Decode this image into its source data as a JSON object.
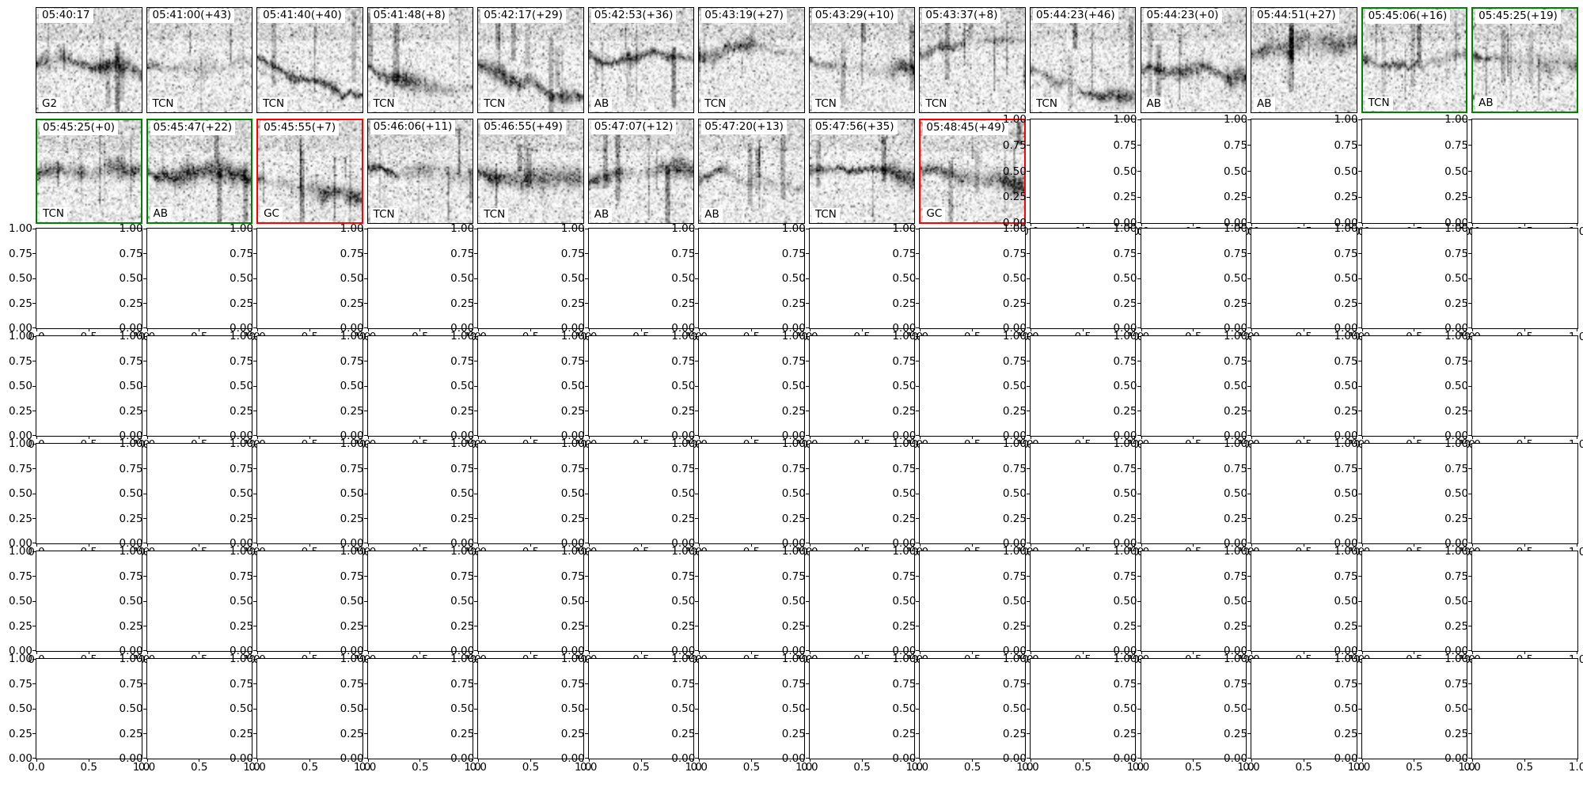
{
  "chart_data": {
    "type": "heatmap",
    "subtype": "spectrogram-detection-thumbnail-grid",
    "grid": {
      "rows": 7,
      "cols": 14
    },
    "colors": {
      "background": "#ffffff",
      "spine": "#000000",
      "text": "#000000",
      "highlight_green": "#008000",
      "highlight_red": "#ff0000"
    },
    "empty_axes": {
      "xlim": [
        0,
        1
      ],
      "ylim": [
        0,
        1
      ],
      "yticks": [
        "1.00",
        "0.75",
        "0.50",
        "0.25",
        "0.00"
      ],
      "xticks": [
        "0.0",
        "0.5",
        "1.0"
      ],
      "grid_lines": "off",
      "legend": "none"
    },
    "panels": [
      {
        "row": 0,
        "col": 0,
        "timestamp": "05:40:17",
        "label": "G2",
        "highlight": "none"
      },
      {
        "row": 0,
        "col": 1,
        "timestamp": "05:41:00(+43)",
        "label": "TCN",
        "highlight": "none"
      },
      {
        "row": 0,
        "col": 2,
        "timestamp": "05:41:40(+40)",
        "label": "TCN",
        "highlight": "none"
      },
      {
        "row": 0,
        "col": 3,
        "timestamp": "05:41:48(+8)",
        "label": "TCN",
        "highlight": "none"
      },
      {
        "row": 0,
        "col": 4,
        "timestamp": "05:42:17(+29)",
        "label": "TCN",
        "highlight": "none"
      },
      {
        "row": 0,
        "col": 5,
        "timestamp": "05:42:53(+36)",
        "label": "AB",
        "highlight": "none"
      },
      {
        "row": 0,
        "col": 6,
        "timestamp": "05:43:19(+27)",
        "label": "TCN",
        "highlight": "none"
      },
      {
        "row": 0,
        "col": 7,
        "timestamp": "05:43:29(+10)",
        "label": "TCN",
        "highlight": "none"
      },
      {
        "row": 0,
        "col": 8,
        "timestamp": "05:43:37(+8)",
        "label": "TCN",
        "highlight": "none"
      },
      {
        "row": 0,
        "col": 9,
        "timestamp": "05:44:23(+46)",
        "label": "TCN",
        "highlight": "none"
      },
      {
        "row": 0,
        "col": 10,
        "timestamp": "05:44:23(+0)",
        "label": "AB",
        "highlight": "none"
      },
      {
        "row": 0,
        "col": 11,
        "timestamp": "05:44:51(+27)",
        "label": "AB",
        "highlight": "none"
      },
      {
        "row": 0,
        "col": 12,
        "timestamp": "05:45:06(+16)",
        "label": "TCN",
        "highlight": "green"
      },
      {
        "row": 0,
        "col": 13,
        "timestamp": "05:45:25(+19)",
        "label": "AB",
        "highlight": "green"
      },
      {
        "row": 1,
        "col": 0,
        "timestamp": "05:45:25(+0)",
        "label": "TCN",
        "highlight": "green"
      },
      {
        "row": 1,
        "col": 1,
        "timestamp": "05:45:47(+22)",
        "label": "AB",
        "highlight": "green"
      },
      {
        "row": 1,
        "col": 2,
        "timestamp": "05:45:55(+7)",
        "label": "GC",
        "highlight": "red"
      },
      {
        "row": 1,
        "col": 3,
        "timestamp": "05:46:06(+11)",
        "label": "TCN",
        "highlight": "none"
      },
      {
        "row": 1,
        "col": 4,
        "timestamp": "05:46:55(+49)",
        "label": "TCN",
        "highlight": "none"
      },
      {
        "row": 1,
        "col": 5,
        "timestamp": "05:47:07(+12)",
        "label": "AB",
        "highlight": "none"
      },
      {
        "row": 1,
        "col": 6,
        "timestamp": "05:47:20(+13)",
        "label": "AB",
        "highlight": "none"
      },
      {
        "row": 1,
        "col": 7,
        "timestamp": "05:47:56(+35)",
        "label": "TCN",
        "highlight": "none"
      },
      {
        "row": 1,
        "col": 8,
        "timestamp": "05:48:45(+49)",
        "label": "GC",
        "highlight": "red"
      }
    ]
  }
}
